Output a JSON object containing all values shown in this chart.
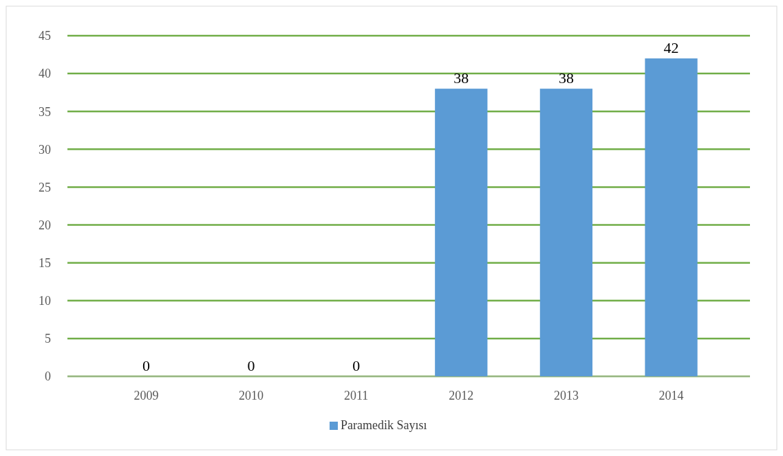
{
  "chart_data": {
    "type": "bar",
    "categories": [
      "2009",
      "2010",
      "2011",
      "2012",
      "2013",
      "2014"
    ],
    "series": [
      {
        "name": "Paramedik Sayısı",
        "color": "#5b9bd5",
        "values": [
          0,
          0,
          0,
          38,
          38,
          42
        ]
      }
    ],
    "ylim": [
      0,
      45
    ],
    "yticks": [
      0,
      5,
      10,
      15,
      20,
      25,
      30,
      35,
      40,
      45
    ],
    "grid": "y",
    "legend": "bottom",
    "data_labels": true
  }
}
